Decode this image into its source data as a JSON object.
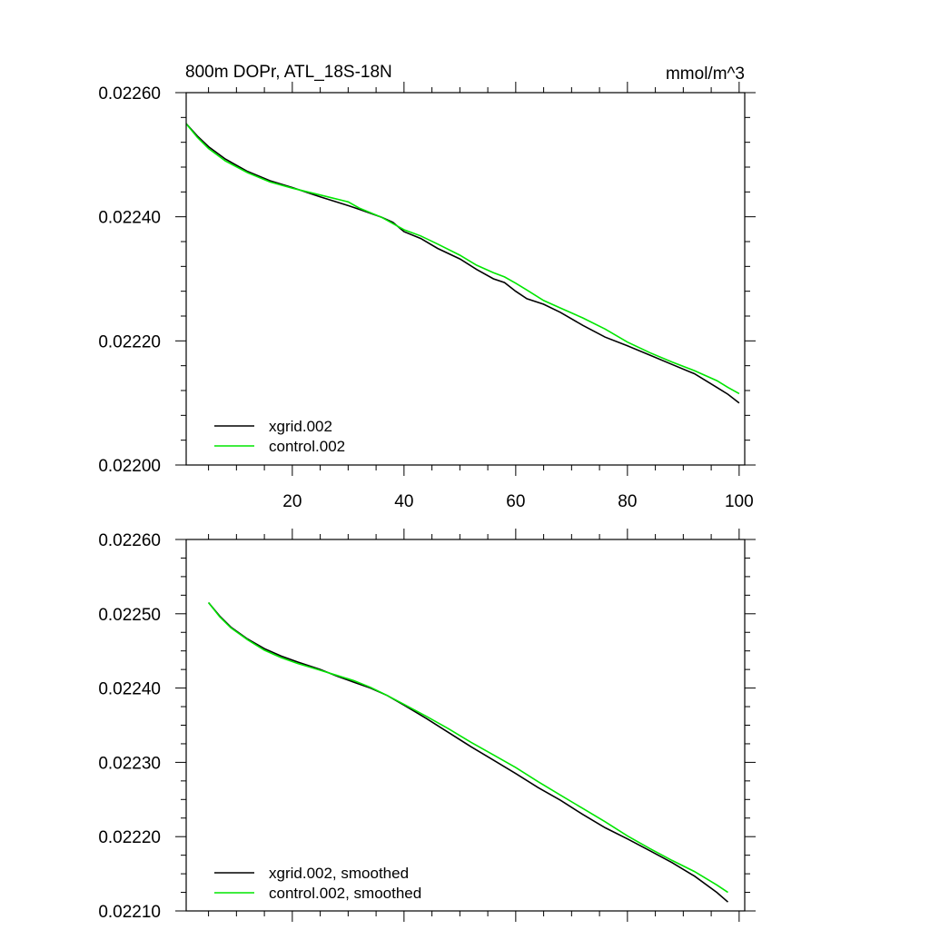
{
  "colors": {
    "background": "#ffffff",
    "axis": "#000000",
    "xgrid": "#000000",
    "control": "#00e600"
  },
  "chart_data": [
    {
      "type": "line",
      "title": "800m DOPr, ATL_18S-18N",
      "units": "mmol/m^3",
      "xlabel": "",
      "ylabel": "",
      "xlim": [
        1,
        101
      ],
      "ylim": [
        0.022,
        0.0226
      ],
      "xticks": [
        20,
        40,
        60,
        80,
        100
      ],
      "xtick_labels": [
        "20",
        "40",
        "60",
        "80",
        "100"
      ],
      "yticks": [
        0.022,
        0.0222,
        0.0224,
        0.0226
      ],
      "ytick_labels": [
        "0.02200",
        "0.02220",
        "0.02240",
        "0.02260"
      ],
      "legend_position": "bottom-left",
      "series": [
        {
          "name": "xgrid.002",
          "color": "#000000",
          "x": [
            1,
            3,
            5,
            8,
            12,
            16,
            20,
            25,
            30,
            32,
            36,
            38,
            40,
            43,
            46,
            50,
            53,
            56,
            58,
            60,
            62,
            65,
            68,
            72,
            76,
            80,
            84,
            88,
            92,
            96,
            98,
            100
          ],
          "y": [
            0.02255,
            0.02253,
            0.022513,
            0.022493,
            0.022473,
            0.022458,
            0.022447,
            0.022432,
            0.022418,
            0.022412,
            0.022399,
            0.022391,
            0.022376,
            0.022365,
            0.022349,
            0.022332,
            0.022315,
            0.0223,
            0.022294,
            0.02228,
            0.022268,
            0.022259,
            0.022246,
            0.022225,
            0.022206,
            0.022192,
            0.022177,
            0.022162,
            0.022147,
            0.022125,
            0.022114,
            0.0221
          ]
        },
        {
          "name": "control.002",
          "color": "#00e600",
          "x": [
            1,
            3,
            5,
            8,
            12,
            16,
            20,
            25,
            30,
            32,
            36,
            38,
            40,
            43,
            46,
            50,
            53,
            56,
            58,
            60,
            62,
            65,
            68,
            72,
            76,
            80,
            84,
            88,
            92,
            96,
            98,
            100
          ],
          "y": [
            0.02255,
            0.022528,
            0.02251,
            0.02249,
            0.022471,
            0.022456,
            0.022446,
            0.022435,
            0.022424,
            0.022414,
            0.022399,
            0.022389,
            0.022379,
            0.022369,
            0.022356,
            0.022338,
            0.022322,
            0.02231,
            0.022303,
            0.022293,
            0.022282,
            0.022265,
            0.022253,
            0.022237,
            0.022219,
            0.022198,
            0.022181,
            0.022166,
            0.022152,
            0.022136,
            0.022125,
            0.022115
          ]
        }
      ]
    },
    {
      "type": "line",
      "title": "",
      "xlabel": "",
      "ylabel": "",
      "xlim": [
        1,
        101
      ],
      "ylim": [
        0.0221,
        0.0226
      ],
      "xticks": [
        20,
        40,
        60,
        80,
        100
      ],
      "xtick_labels": [],
      "yticks": [
        0.0221,
        0.0222,
        0.0223,
        0.0224,
        0.0225,
        0.0226
      ],
      "ytick_labels": [
        "0.02210",
        "0.02220",
        "0.02230",
        "0.02240",
        "0.02250",
        "0.02260"
      ],
      "legend_position": "bottom-left",
      "series": [
        {
          "name": "xgrid.002, smoothed",
          "color": "#000000",
          "x": [
            5,
            7,
            9,
            12,
            15,
            18,
            21,
            25,
            28,
            31,
            34,
            37,
            40,
            44,
            48,
            52,
            56,
            60,
            64,
            68,
            72,
            76,
            80,
            84,
            88,
            92,
            96,
            98
          ],
          "y": [
            0.022515,
            0.022497,
            0.022482,
            0.022466,
            0.022453,
            0.022443,
            0.022435,
            0.022425,
            0.022416,
            0.022408,
            0.0224,
            0.02239,
            0.022377,
            0.022359,
            0.02234,
            0.022321,
            0.022303,
            0.022285,
            0.022266,
            0.022249,
            0.02223,
            0.022212,
            0.022197,
            0.022181,
            0.022165,
            0.022147,
            0.022125,
            0.022112
          ]
        },
        {
          "name": "control.002, smoothed",
          "color": "#00e600",
          "x": [
            5,
            7,
            9,
            12,
            15,
            18,
            21,
            25,
            28,
            31,
            34,
            37,
            40,
            44,
            48,
            52,
            56,
            60,
            64,
            68,
            72,
            76,
            80,
            84,
            88,
            92,
            96,
            98
          ],
          "y": [
            0.022515,
            0.022496,
            0.022481,
            0.022465,
            0.022451,
            0.022441,
            0.022433,
            0.022424,
            0.022417,
            0.02241,
            0.022401,
            0.02239,
            0.022378,
            0.022362,
            0.022345,
            0.022327,
            0.02231,
            0.022293,
            0.022274,
            0.022256,
            0.022238,
            0.02222,
            0.022201,
            0.022184,
            0.022168,
            0.022153,
            0.022135,
            0.022125
          ]
        }
      ]
    }
  ]
}
